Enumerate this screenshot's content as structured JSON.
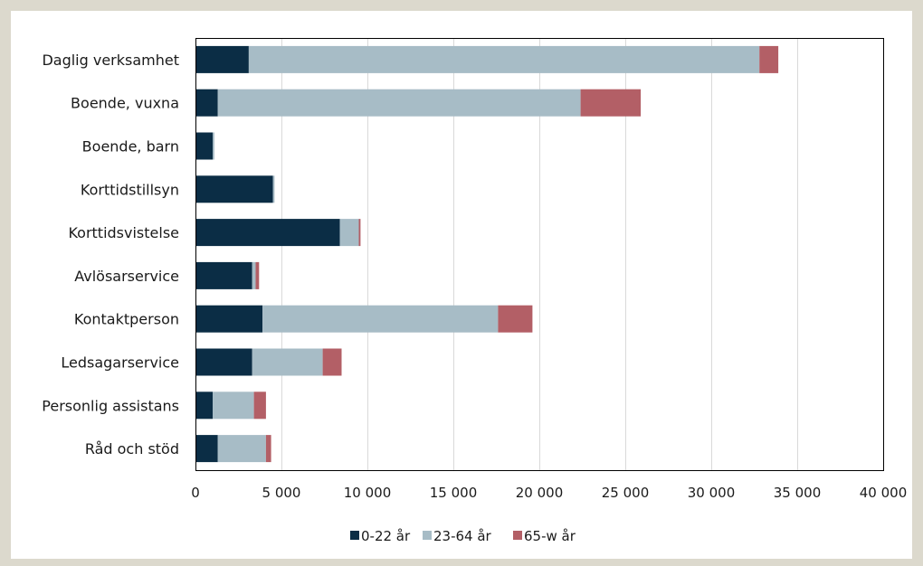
{
  "chart_data": {
    "type": "bar",
    "orientation": "horizontal",
    "stacked": true,
    "categories": [
      "Daglig verksamhet",
      "Boende, vuxna",
      "Boende, barn",
      "Korttidstillsyn",
      "Korttidsvistelse",
      "Avlösarservice",
      "Kontaktperson",
      "Ledsagarservice",
      "Personlig assistans",
      "Råd och stöd"
    ],
    "series": [
      {
        "name": "0-22 år",
        "color": "#0b2d45",
        "values": [
          3100,
          1300,
          1000,
          4500,
          8400,
          3300,
          3900,
          3300,
          1000,
          1300
        ]
      },
      {
        "name": "23-64 år",
        "color": "#a7bcc6",
        "values": [
          29700,
          21100,
          100,
          100,
          1100,
          200,
          13700,
          4100,
          2400,
          2800
        ]
      },
      {
        "name": "65-w år",
        "color": "#b35f66",
        "values": [
          1100,
          3500,
          0,
          0,
          100,
          200,
          2000,
          1100,
          700,
          300
        ]
      }
    ],
    "xlim": [
      0,
      40000
    ],
    "xticks": [
      0,
      5000,
      10000,
      15000,
      20000,
      25000,
      30000,
      35000,
      40000
    ],
    "xtick_labels": [
      "0",
      "5 000",
      "10 000",
      "15 000",
      "20 000",
      "25 000",
      "30 000",
      "35 000",
      "40 000"
    ],
    "grid": "vertical",
    "legend_position": "bottom"
  }
}
